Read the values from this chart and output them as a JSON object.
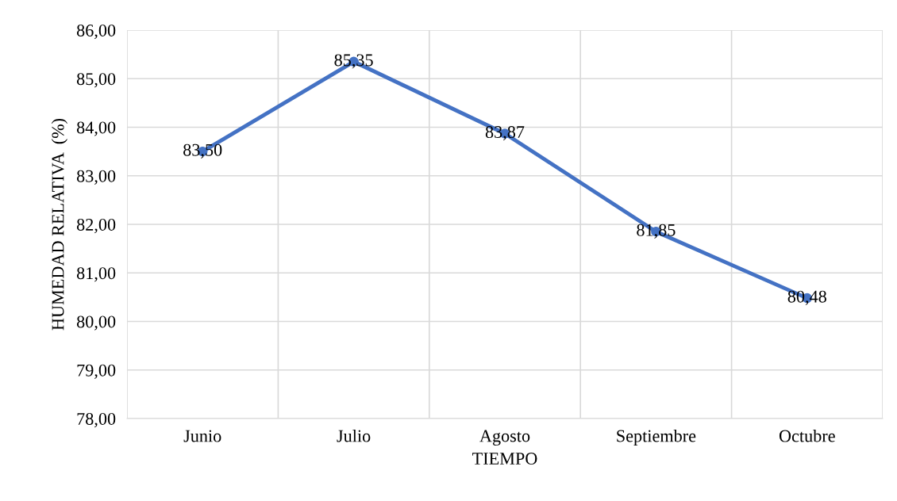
{
  "chart_data": {
    "type": "line",
    "xlabel": "TIEMPO",
    "ylabel": "HUMEDAD RELATIVA  (%)",
    "categories": [
      "Junio",
      "Julio",
      "Agosto",
      "Septiembre",
      "Octubre"
    ],
    "series": [
      {
        "color": "#4472c4",
        "values": [
          83.5,
          85.35,
          83.87,
          81.85,
          80.48
        ],
        "value_labels": [
          "83,50",
          "85,35",
          "83,87",
          "81,85",
          "80,48"
        ]
      }
    ],
    "ylim": [
      78,
      86
    ],
    "yticks": [
      {
        "value": 78,
        "label": "78,00"
      },
      {
        "value": 79,
        "label": "79,00"
      },
      {
        "value": 80,
        "label": "80,00"
      },
      {
        "value": 81,
        "label": "81,00"
      },
      {
        "value": 82,
        "label": "82,00"
      },
      {
        "value": 83,
        "label": "83,00"
      },
      {
        "value": 84,
        "label": "84,00"
      },
      {
        "value": 85,
        "label": "85,00"
      },
      {
        "value": 86,
        "label": "86,00"
      }
    ],
    "grid": true,
    "marker": "circle",
    "line_style": "solid",
    "legend": false
  }
}
